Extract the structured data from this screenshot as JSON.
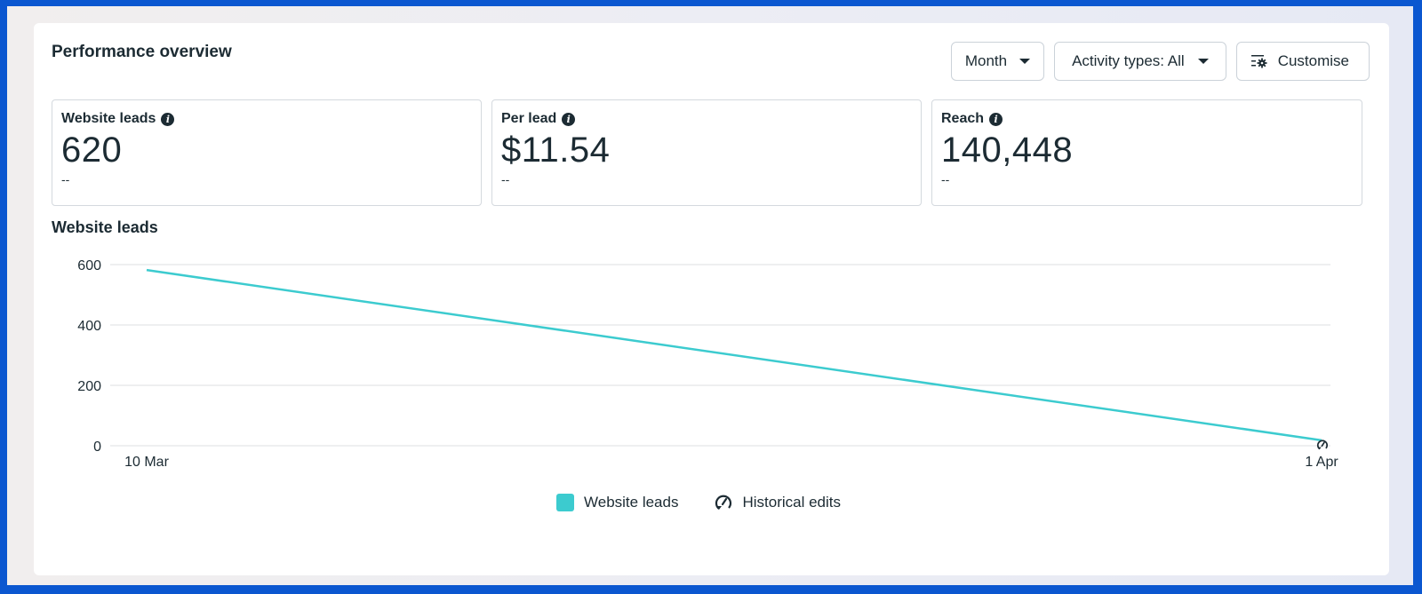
{
  "header": {
    "title": "Performance overview",
    "controls": {
      "period_label": "Month",
      "activity_label": "Activity types: All",
      "customise_label": "Customise"
    }
  },
  "metrics": [
    {
      "label": "Website leads",
      "value": "620",
      "delta": "--"
    },
    {
      "label": "Per lead",
      "value": "$11.54",
      "delta": "--"
    },
    {
      "label": "Reach",
      "value": "140,448",
      "delta": "--"
    }
  ],
  "chart_section": {
    "title": "Website leads"
  },
  "legend": {
    "series_label": "Website leads",
    "edits_label": "Historical edits"
  },
  "colors": {
    "series": "#3ccbcf",
    "frame": "#0b57d0",
    "text": "#1c2b33",
    "grid": "#dddfe2"
  },
  "chart_data": {
    "type": "line",
    "title": "Website leads",
    "xlabel": "",
    "ylabel": "",
    "x": [
      "10 Mar",
      "1 Apr"
    ],
    "series": [
      {
        "name": "Website leads",
        "values": [
          582,
          18
        ]
      }
    ],
    "yticks": [
      0,
      200,
      400,
      600
    ],
    "ylim": [
      0,
      600
    ],
    "grid": true,
    "legend": [
      "Website leads",
      "Historical edits"
    ],
    "legend_position": "bottom",
    "annotations": [
      {
        "type": "historical-edit-marker",
        "x": "1 Apr"
      }
    ]
  }
}
